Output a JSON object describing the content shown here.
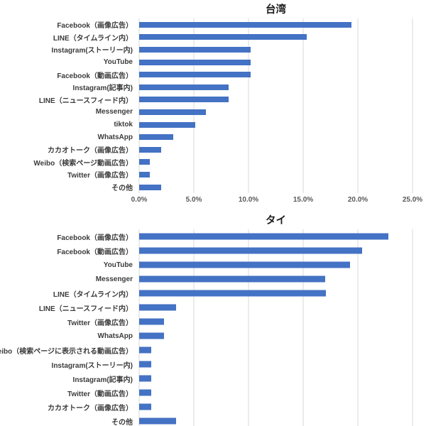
{
  "chart_data": [
    {
      "type": "bar",
      "orientation": "horizontal",
      "title": "台湾",
      "bar_color": "#4472C4",
      "xlim": [
        0,
        25
      ],
      "grid_ticks": [
        0,
        5,
        10,
        15,
        20,
        25
      ],
      "x_tick_labels": [
        "0.0%",
        "5.0%",
        "10.0%",
        "15.0%",
        "20.0%",
        "25.0%"
      ],
      "grid": "vertical",
      "legend": "none",
      "categories": [
        "Facebook（画像広告）",
        "LINE（タイムライン内）",
        "Instagram(ストーリー内)",
        "YouTube",
        "Facebook（動画広告）",
        "Instagram(記事内)",
        "LINE（ニュースフィード内）",
        "Messenger",
        "tiktok",
        "WhatsApp",
        "カカオトーク（画像広告）",
        "Weibo（検索ページ動画広告）",
        "Twitter（画像広告）",
        "その他"
      ],
      "values": [
        19.4,
        15.3,
        10.2,
        10.2,
        10.2,
        8.2,
        8.2,
        6.1,
        5.1,
        3.1,
        2.0,
        1.0,
        1.0,
        2.0
      ]
    },
    {
      "type": "bar",
      "orientation": "horizontal",
      "title": "タイ",
      "bar_color": "#4472C4",
      "xlim": [
        0,
        25
      ],
      "grid_ticks": [
        0,
        5,
        10,
        15,
        20,
        25
      ],
      "x_tick_labels": [],
      "grid": "vertical",
      "legend": "none",
      "categories": [
        "Facebook（画像広告）",
        "Facebook（動画広告）",
        "YouTube",
        "Messenger",
        "LINE（タイムライン内）",
        "LINE（ニュースフィード内）",
        "Twitter（画像広告）",
        "WhatsApp",
        "Weibo（検索ページに表示される動画広告）",
        "Instagram(ストーリー内)",
        "Instagram(記事内)",
        "Twitter（動画広告）",
        "カカオトーク（画像広告）",
        "その他"
      ],
      "values": [
        22.8,
        20.4,
        19.3,
        17.0,
        17.1,
        3.4,
        2.3,
        2.3,
        1.1,
        1.1,
        1.1,
        1.1,
        1.1,
        3.4
      ]
    }
  ]
}
